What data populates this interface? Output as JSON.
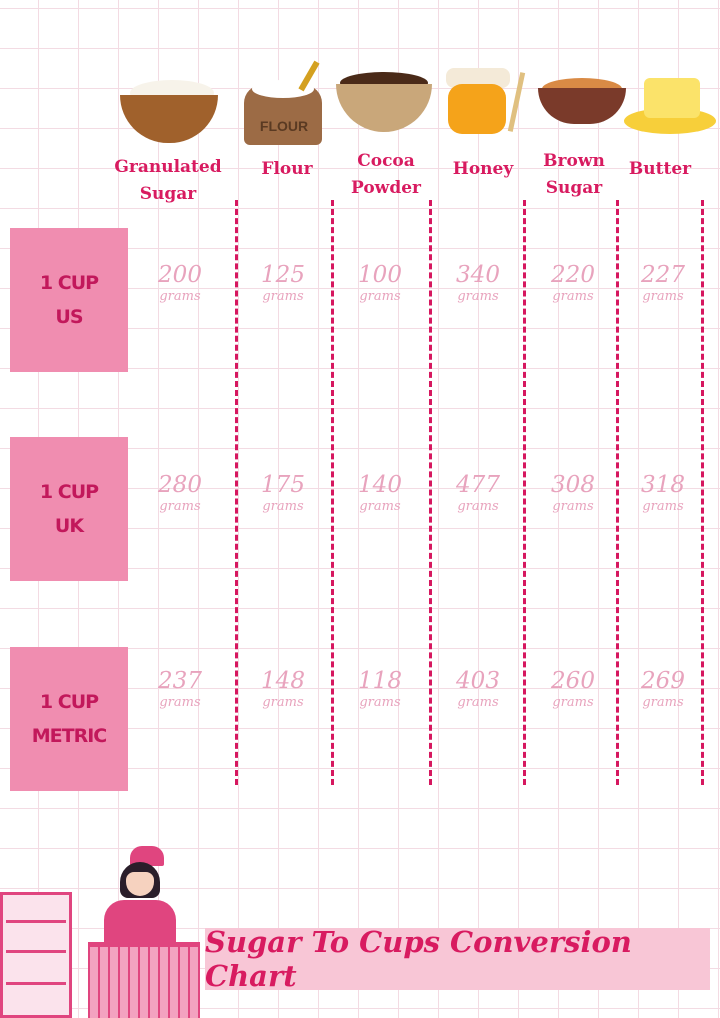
{
  "ingredients": [
    {
      "label_1": "Granulated",
      "label_2": "Sugar",
      "icon": "sugar-bowl-icon"
    },
    {
      "label_1": "Flour",
      "label_2": "",
      "icon": "flour-sack-icon",
      "sack_text": "FLOUR"
    },
    {
      "label_1": "Cocoa",
      "label_2": "Powder",
      "icon": "cocoa-bowl-icon"
    },
    {
      "label_1": "Honey",
      "label_2": "",
      "icon": "honey-jar-icon"
    },
    {
      "label_1": "Brown",
      "label_2": "Sugar",
      "icon": "brown-sugar-bowl-icon"
    },
    {
      "label_1": "Butter",
      "label_2": "",
      "icon": "butter-icon"
    }
  ],
  "rows": [
    {
      "label_1": "1 CUP",
      "label_2": "US",
      "values": [
        "200",
        "125",
        "100",
        "340",
        "220",
        "227"
      ]
    },
    {
      "label_1": "1 CUP",
      "label_2": "UK",
      "values": [
        "280",
        "175",
        "140",
        "477",
        "308",
        "318"
      ]
    },
    {
      "label_1": "1 CUP",
      "label_2": "METRIC",
      "values": [
        "237",
        "148",
        "118",
        "403",
        "260",
        "269"
      ]
    }
  ],
  "unit": "grams",
  "title": "Sugar To Cups Conversion Chart",
  "colors": {
    "accent": "#d81b60",
    "label_box": "#f08db0",
    "values": "#e8a3bd",
    "banner": "#f8c6d6"
  }
}
